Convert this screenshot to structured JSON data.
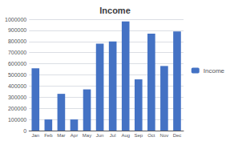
{
  "chart_data": {
    "type": "bar",
    "title": "Income",
    "categories": [
      "Jan",
      "Feb",
      "Mar",
      "Apr",
      "May",
      "Jun",
      "Jul",
      "Aug",
      "Sep",
      "Oct",
      "Nov",
      "Dec"
    ],
    "series": [
      {
        "name": "Income",
        "color": "#4472C4",
        "values": [
          560000,
          100000,
          330000,
          100000,
          370000,
          780000,
          800000,
          980000,
          460000,
          870000,
          580000,
          890000
        ]
      }
    ],
    "ylim": [
      0,
      1000000
    ],
    "yticks": [
      0,
      100000,
      200000,
      300000,
      400000,
      500000,
      600000,
      700000,
      800000,
      900000,
      1000000
    ],
    "grid": true,
    "legend": "right"
  }
}
